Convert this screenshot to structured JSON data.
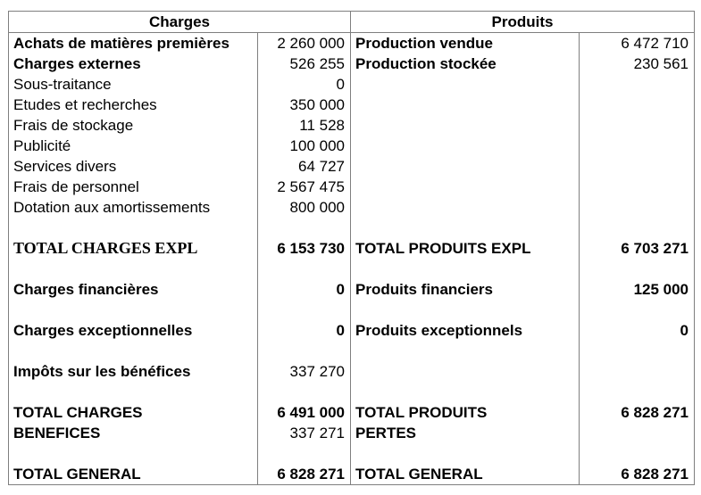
{
  "table": {
    "headers": {
      "charges": "Charges",
      "produits": "Produits"
    },
    "rows": [
      {
        "cl": "Achats de matières premières",
        "cv": "2 260 000",
        "pl": "Production vendue",
        "pv": "6 472 710"
      },
      {
        "cl": "Charges externes",
        "cv": "526 255",
        "pl": "Production stockée",
        "pv": "230 561"
      },
      {
        "cl": "Sous-traitance",
        "cv": "0",
        "pl": "",
        "pv": ""
      },
      {
        "cl": "Etudes et recherches",
        "cv": "350 000",
        "pl": "",
        "pv": ""
      },
      {
        "cl": "Frais de stockage",
        "cv": "11 528",
        "pl": "",
        "pv": ""
      },
      {
        "cl": "Publicité",
        "cv": "100 000",
        "pl": "",
        "pv": ""
      },
      {
        "cl": "Services divers",
        "cv": "64 727",
        "pl": "",
        "pv": ""
      },
      {
        "cl": "Frais de personnel",
        "cv": "2 567 475",
        "pl": "",
        "pv": ""
      },
      {
        "cl": "Dotation aux amortissements",
        "cv": "800 000",
        "pl": "",
        "pv": ""
      },
      {
        "cl": "",
        "cv": "",
        "pl": "",
        "pv": ""
      },
      {
        "cl": "TOTAL CHARGES EXPL",
        "cv": "6 153 730",
        "pl": "TOTAL PRODUITS EXPL",
        "pv": "6 703 271"
      },
      {
        "cl": "",
        "cv": "",
        "pl": "",
        "pv": ""
      },
      {
        "cl": "Charges financières",
        "cv": "0",
        "pl": "Produits financiers",
        "pv": "125 000"
      },
      {
        "cl": "",
        "cv": "",
        "pl": "",
        "pv": ""
      },
      {
        "cl": "Charges exceptionnelles",
        "cv": "0",
        "pl": "Produits exceptionnels",
        "pv": "0"
      },
      {
        "cl": "",
        "cv": "",
        "pl": "",
        "pv": ""
      },
      {
        "cl": "Impôts sur les bénéfices",
        "cv": "337 270",
        "pl": "",
        "pv": ""
      },
      {
        "cl": "",
        "cv": "",
        "pl": "",
        "pv": ""
      },
      {
        "cl": "TOTAL CHARGES",
        "cv": "6 491 000",
        "pl": "TOTAL PRODUITS",
        "pv": "6 828 271"
      },
      {
        "cl": "BENEFICES",
        "cv": "337 271",
        "pl": "PERTES",
        "pv": ""
      },
      {
        "cl": "",
        "cv": "",
        "pl": "",
        "pv": ""
      },
      {
        "cl": "TOTAL GENERAL",
        "cv": "6 828 271",
        "pl": "TOTAL GENERAL",
        "pv": "6 828 271"
      }
    ]
  }
}
